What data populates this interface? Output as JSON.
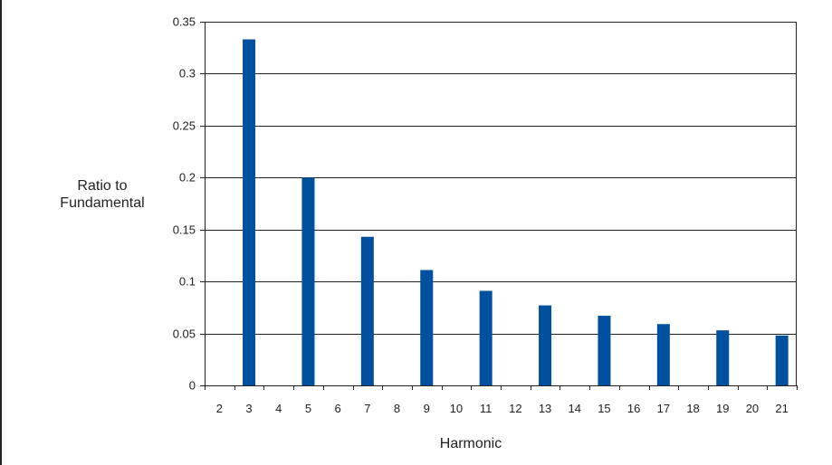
{
  "chart_data": {
    "type": "bar",
    "title": "",
    "ylabel_lines": [
      "Ratio to",
      "Fundamental"
    ],
    "xlabel": "Harmonic",
    "categories": [
      "2",
      "3",
      "4",
      "5",
      "6",
      "7",
      "8",
      "9",
      "10",
      "11",
      "12",
      "13",
      "14",
      "15",
      "16",
      "17",
      "18",
      "19",
      "20",
      "21"
    ],
    "values": [
      0,
      0.333,
      0,
      0.2,
      0,
      0.143,
      0,
      0.111,
      0,
      0.091,
      0,
      0.077,
      0,
      0.067,
      0,
      0.059,
      0,
      0.053,
      0,
      0.048
    ],
    "ylim": [
      0,
      0.35
    ],
    "yticks": [
      "0",
      "0.05",
      "0.1",
      "0.15",
      "0.2",
      "0.25",
      "0.3",
      "0.35"
    ],
    "ytick_values": [
      0,
      0.05,
      0.1,
      0.15,
      0.2,
      0.25,
      0.3,
      0.35
    ],
    "grid": true,
    "legend": "none",
    "bar_color": "#0050A0",
    "grid_color": "#222222"
  }
}
